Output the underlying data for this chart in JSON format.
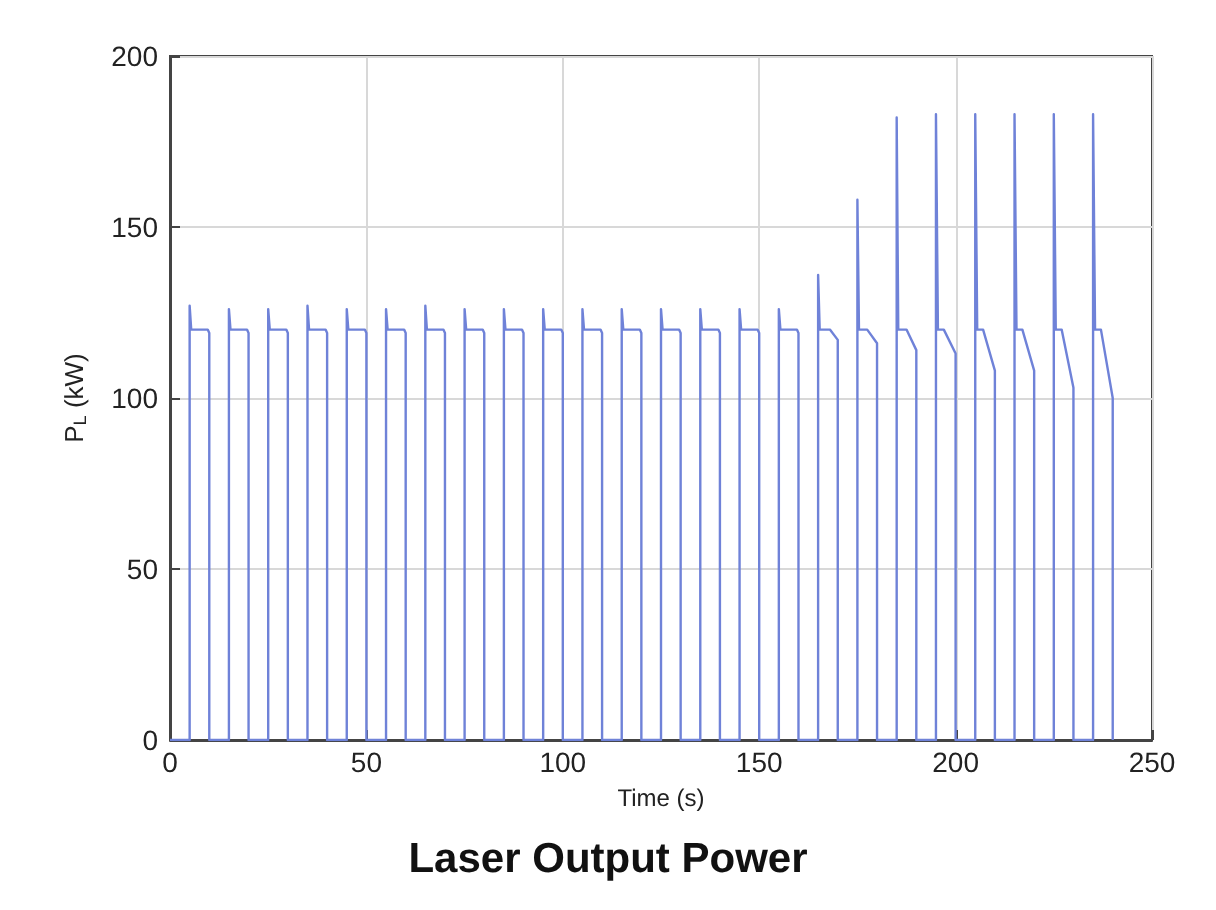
{
  "chart_data": {
    "type": "line",
    "title": "Laser Output Power",
    "xlabel": "Time (s)",
    "ylabel": "P$_{L}$ (kW)",
    "xlim": [
      0,
      250
    ],
    "xticks": [
      0,
      50,
      100,
      150,
      200,
      250
    ],
    "ylim": [
      0,
      200
    ],
    "yticks": [
      0,
      50,
      100,
      150,
      200
    ],
    "grid": true,
    "line_style": "solid",
    "series": [
      {
        "color": "#6f82d8",
        "x": [
          0,
          5,
          5,
          5.4,
          9.6,
          10,
          10,
          15,
          15,
          15.4,
          19.6,
          20,
          20,
          25,
          25,
          25.4,
          29.6,
          30,
          30,
          35,
          35,
          35.4,
          39.6,
          40,
          40,
          45,
          45,
          45.4,
          49.6,
          50,
          50,
          55,
          55,
          55.4,
          59.6,
          60,
          60,
          65,
          65,
          65.4,
          69.6,
          70,
          70,
          75,
          75,
          75.4,
          79.6,
          80,
          80,
          85,
          85,
          85.4,
          89.6,
          90,
          90,
          95,
          95,
          95.4,
          99.6,
          100,
          100,
          105,
          105,
          105.4,
          109.6,
          110,
          110,
          115,
          115,
          115.4,
          119.6,
          120,
          120,
          125,
          125,
          125.4,
          129.6,
          130,
          130,
          135,
          135,
          135.4,
          139.6,
          140,
          140,
          145,
          145,
          145.4,
          149.6,
          150,
          150,
          155,
          155,
          155.4,
          159.6,
          160,
          160,
          165,
          165,
          165.4,
          168,
          170,
          170,
          175,
          175,
          175.4,
          177.5,
          180,
          180,
          185,
          185,
          185.4,
          187.5,
          190,
          190,
          195,
          195,
          195.2,
          195.5,
          197,
          200,
          200,
          205,
          205,
          205.2,
          205.5,
          207,
          210,
          210,
          215,
          215,
          215.2,
          215.5,
          217,
          220,
          220,
          225,
          225,
          225.2,
          225.5,
          227,
          230,
          230,
          235,
          235,
          235.2,
          235.5,
          237,
          240,
          240
        ],
        "values": [
          0,
          0,
          127,
          120,
          120,
          119,
          0,
          0,
          126,
          120,
          120,
          119,
          0,
          0,
          126,
          120,
          120,
          119,
          0,
          0,
          127,
          120,
          120,
          119,
          0,
          0,
          126,
          120,
          120,
          119,
          0,
          0,
          126,
          120,
          120,
          119,
          0,
          0,
          127,
          120,
          120,
          119,
          0,
          0,
          126,
          120,
          120,
          119,
          0,
          0,
          126,
          120,
          120,
          119,
          0,
          0,
          126,
          120,
          120,
          119,
          0,
          0,
          126,
          120,
          120,
          119,
          0,
          0,
          126,
          120,
          120,
          119,
          0,
          0,
          126,
          120,
          120,
          119,
          0,
          0,
          126,
          120,
          120,
          119,
          0,
          0,
          126,
          120,
          120,
          119,
          0,
          0,
          126,
          120,
          120,
          119,
          0,
          0,
          136,
          120,
          120,
          117,
          0,
          0,
          158,
          120,
          120,
          116,
          0,
          0,
          182,
          120,
          120,
          114,
          0,
          0,
          183,
          158,
          120,
          120,
          113,
          0,
          0,
          183,
          158,
          120,
          120,
          108,
          0,
          0,
          183,
          158,
          120,
          120,
          108,
          0,
          0,
          183,
          158,
          120,
          120,
          103,
          0,
          0,
          183,
          158,
          120,
          120,
          100,
          0
        ]
      }
    ]
  }
}
